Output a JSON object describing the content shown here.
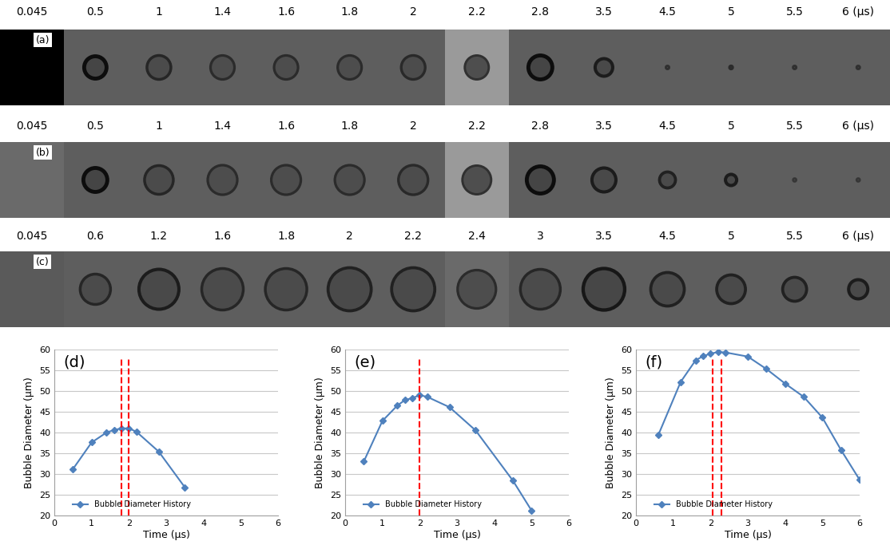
{
  "chart_data": [
    {
      "type": "line",
      "annotation": "(d)",
      "x_label": "Time (μs)",
      "y_label": "Bubble Diameter (μm)",
      "xlim": [
        0,
        6
      ],
      "xticks": [
        0,
        1,
        2,
        3,
        4,
        5,
        6
      ],
      "ylim": [
        20,
        60
      ],
      "yticks": [
        20,
        25,
        30,
        35,
        40,
        45,
        50,
        55,
        60
      ],
      "grid": "y",
      "legend": "lower left",
      "series": [
        {
          "name": "Bubble Diameter History",
          "color": "#4f81bd",
          "marker": "diamond",
          "x": [
            0.5,
            1,
            1.4,
            1.6,
            1.8,
            2,
            2.2,
            2.8,
            3.5
          ],
          "values": [
            31.2,
            37.6,
            40.0,
            40.6,
            41.0,
            41.0,
            40.2,
            35.4,
            26.8
          ]
        }
      ],
      "vlines": {
        "x": [
          1.8,
          2.0
        ],
        "color": "#ff0000",
        "line_style": "dashed"
      }
    },
    {
      "type": "line",
      "annotation": "(e)",
      "x_label": "Time (μs)",
      "y_label": "Bubble Diameter (μm)",
      "xlim": [
        0,
        6
      ],
      "xticks": [
        0,
        1,
        2,
        3,
        4,
        5,
        6
      ],
      "ylim": [
        20,
        60
      ],
      "yticks": [
        20,
        25,
        30,
        35,
        40,
        45,
        50,
        55,
        60
      ],
      "grid": "y",
      "legend": "lower left",
      "series": [
        {
          "name": "Bubble Diameter History",
          "color": "#4f81bd",
          "marker": "diamond",
          "x": [
            0.5,
            1,
            1.4,
            1.6,
            1.8,
            2,
            2.2,
            2.8,
            3.5,
            4.5,
            5
          ],
          "values": [
            33.0,
            42.8,
            46.5,
            47.8,
            48.3,
            49.0,
            48.6,
            46.1,
            40.5,
            28.4,
            21.2
          ]
        }
      ],
      "vlines": {
        "x": [
          2.0
        ],
        "color": "#ff0000",
        "line_style": "dashed"
      }
    },
    {
      "type": "line",
      "annotation": "(f)",
      "x_label": "Time (μs)",
      "y_label": "Bubble Diameter (μm)",
      "xlim": [
        0,
        6
      ],
      "xticks": [
        0,
        1,
        2,
        3,
        4,
        5,
        6
      ],
      "ylim": [
        20,
        60
      ],
      "yticks": [
        20,
        25,
        30,
        35,
        40,
        45,
        50,
        55,
        60
      ],
      "grid": "y",
      "legend": "lower left",
      "series": [
        {
          "name": "Bubble Diameter History",
          "color": "#4f81bd",
          "marker": "diamond",
          "x": [
            0.6,
            1.2,
            1.6,
            1.8,
            2,
            2.2,
            2.4,
            3,
            3.5,
            4,
            4.5,
            5,
            5.5,
            6
          ],
          "values": [
            39.4,
            52.2,
            57.4,
            58.4,
            59.0,
            59.4,
            59.3,
            58.3,
            55.3,
            51.8,
            48.6,
            43.6,
            35.8,
            28.6
          ]
        }
      ],
      "vlines": {
        "x": [
          2.05,
          2.3
        ],
        "color": "#ff0000",
        "line_style": "dashed"
      }
    }
  ],
  "image_strips": [
    {
      "label": "(a)",
      "times": [
        "0.045",
        "0.5",
        "1",
        "1.4",
        "1.6",
        "1.8",
        "2",
        "2.2",
        "2.8",
        "3.5",
        "4.5",
        "5",
        "5.5",
        "6 (μs)"
      ]
    },
    {
      "label": "(b)",
      "times": [
        "0.045",
        "0.5",
        "1",
        "1.4",
        "1.6",
        "1.8",
        "2",
        "2.2",
        "2.8",
        "3.5",
        "4.5",
        "5",
        "5.5",
        "6 (μs)"
      ]
    },
    {
      "label": "(c)",
      "times": [
        "0.045",
        "0.6",
        "1.2",
        "1.6",
        "1.8",
        "2",
        "2.2",
        "2.4",
        "3",
        "3.5",
        "4.5",
        "5",
        "5.5",
        "6 (μs)"
      ]
    }
  ]
}
